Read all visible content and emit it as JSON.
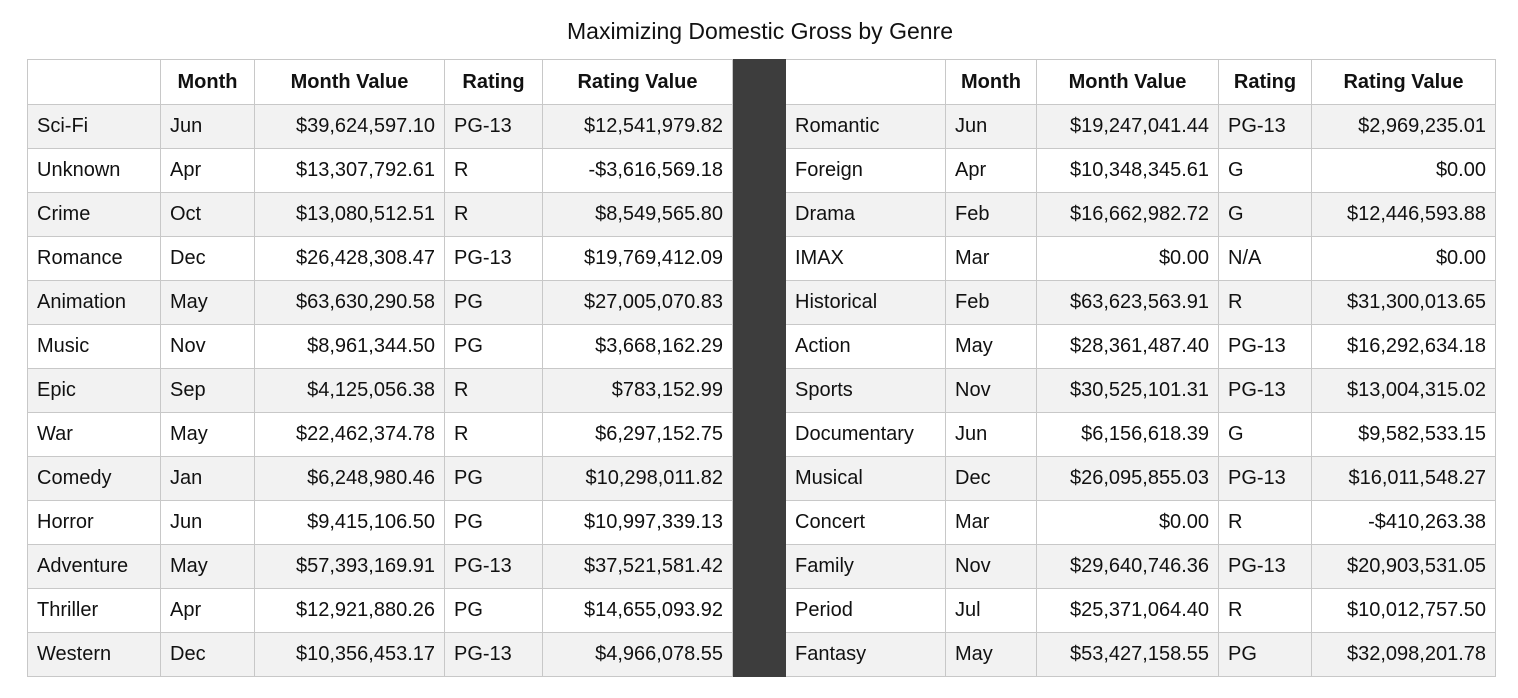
{
  "title": "Maximizing Domestic Gross by Genre",
  "headers": {
    "genre": "",
    "month": "Month",
    "month_value": "Month Value",
    "rating": "Rating",
    "rating_value": "Rating Value"
  },
  "left_rows": [
    {
      "genre": "Sci-Fi",
      "month": "Jun",
      "month_value": "$39,624,597.10",
      "rating": "PG-13",
      "rating_value": "$12,541,979.82"
    },
    {
      "genre": "Unknown",
      "month": "Apr",
      "month_value": "$13,307,792.61",
      "rating": "R",
      "rating_value": "-$3,616,569.18"
    },
    {
      "genre": "Crime",
      "month": "Oct",
      "month_value": "$13,080,512.51",
      "rating": "R",
      "rating_value": "$8,549,565.80"
    },
    {
      "genre": "Romance",
      "month": "Dec",
      "month_value": "$26,428,308.47",
      "rating": "PG-13",
      "rating_value": "$19,769,412.09"
    },
    {
      "genre": "Animation",
      "month": "May",
      "month_value": "$63,630,290.58",
      "rating": "PG",
      "rating_value": "$27,005,070.83"
    },
    {
      "genre": "Music",
      "month": "Nov",
      "month_value": "$8,961,344.50",
      "rating": "PG",
      "rating_value": "$3,668,162.29"
    },
    {
      "genre": "Epic",
      "month": "Sep",
      "month_value": "$4,125,056.38",
      "rating": "R",
      "rating_value": "$783,152.99"
    },
    {
      "genre": "War",
      "month": "May",
      "month_value": "$22,462,374.78",
      "rating": "R",
      "rating_value": "$6,297,152.75"
    },
    {
      "genre": "Comedy",
      "month": "Jan",
      "month_value": "$6,248,980.46",
      "rating": "PG",
      "rating_value": "$10,298,011.82"
    },
    {
      "genre": "Horror",
      "month": "Jun",
      "month_value": "$9,415,106.50",
      "rating": "PG",
      "rating_value": "$10,997,339.13"
    },
    {
      "genre": "Adventure",
      "month": "May",
      "month_value": "$57,393,169.91",
      "rating": "PG-13",
      "rating_value": "$37,521,581.42"
    },
    {
      "genre": "Thriller",
      "month": "Apr",
      "month_value": "$12,921,880.26",
      "rating": "PG",
      "rating_value": "$14,655,093.92"
    },
    {
      "genre": "Western",
      "month": "Dec",
      "month_value": "$10,356,453.17",
      "rating": "PG-13",
      "rating_value": "$4,966,078.55"
    }
  ],
  "right_rows": [
    {
      "genre": "Romantic",
      "month": "Jun",
      "month_value": "$19,247,041.44",
      "rating": "PG-13",
      "rating_value": "$2,969,235.01"
    },
    {
      "genre": "Foreign",
      "month": "Apr",
      "month_value": "$10,348,345.61",
      "rating": "G",
      "rating_value": "$0.00"
    },
    {
      "genre": "Drama",
      "month": "Feb",
      "month_value": "$16,662,982.72",
      "rating": "G",
      "rating_value": "$12,446,593.88"
    },
    {
      "genre": "IMAX",
      "month": "Mar",
      "month_value": "$0.00",
      "rating": "N/A",
      "rating_value": "$0.00"
    },
    {
      "genre": "Historical",
      "month": "Feb",
      "month_value": "$63,623,563.91",
      "rating": "R",
      "rating_value": "$31,300,013.65"
    },
    {
      "genre": "Action",
      "month": "May",
      "month_value": "$28,361,487.40",
      "rating": "PG-13",
      "rating_value": "$16,292,634.18"
    },
    {
      "genre": "Sports",
      "month": "Nov",
      "month_value": "$30,525,101.31",
      "rating": "PG-13",
      "rating_value": "$13,004,315.02"
    },
    {
      "genre": "Documentary",
      "month": "Jun",
      "month_value": "$6,156,618.39",
      "rating": "G",
      "rating_value": "$9,582,533.15"
    },
    {
      "genre": "Musical",
      "month": "Dec",
      "month_value": "$26,095,855.03",
      "rating": "PG-13",
      "rating_value": "$16,011,548.27"
    },
    {
      "genre": "Concert",
      "month": "Mar",
      "month_value": "$0.00",
      "rating": "R",
      "rating_value": "-$410,263.38"
    },
    {
      "genre": "Family",
      "month": "Nov",
      "month_value": "$29,640,746.36",
      "rating": "PG-13",
      "rating_value": "$20,903,531.05"
    },
    {
      "genre": "Period",
      "month": "Jul",
      "month_value": "$25,371,064.40",
      "rating": "R",
      "rating_value": "$10,012,757.50"
    },
    {
      "genre": "Fantasy",
      "month": "May",
      "month_value": "$53,427,158.55",
      "rating": "PG",
      "rating_value": "$32,098,201.78"
    }
  ],
  "colors": {
    "divider": "#3d3d3d",
    "stripe": "#f2f2f2",
    "grid": "#c8c8c8"
  }
}
